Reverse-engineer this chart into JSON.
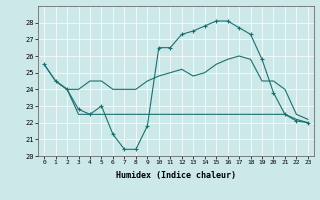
{
  "xlabel": "Humidex (Indice chaleur)",
  "bg_color": "#cce8e8",
  "line_color": "#1a7070",
  "grid_color": "#ffffff",
  "ylim": [
    20,
    29
  ],
  "xlim": [
    -0.5,
    23.5
  ],
  "yticks": [
    20,
    21,
    22,
    23,
    24,
    25,
    26,
    27,
    28
  ],
  "xticks": [
    0,
    1,
    2,
    3,
    4,
    5,
    6,
    7,
    8,
    9,
    10,
    11,
    12,
    13,
    14,
    15,
    16,
    17,
    18,
    19,
    20,
    21,
    22,
    23
  ],
  "line1_x": [
    0,
    1,
    2,
    3,
    4,
    5,
    6,
    7,
    8,
    9,
    10,
    11,
    12,
    13,
    14,
    15,
    16,
    17,
    18,
    19,
    20,
    21,
    22,
    23
  ],
  "line1_y": [
    25.5,
    24.5,
    24.0,
    24.0,
    24.5,
    24.5,
    24.0,
    24.0,
    24.0,
    24.5,
    24.8,
    25.0,
    25.2,
    24.8,
    25.0,
    25.5,
    25.8,
    26.0,
    25.8,
    24.5,
    24.5,
    24.0,
    22.5,
    22.2
  ],
  "line2_x": [
    1,
    2,
    3,
    4,
    5,
    6,
    7,
    8,
    9,
    10,
    11,
    12,
    13,
    14,
    15,
    16,
    17,
    18,
    19,
    20,
    21,
    22,
    23
  ],
  "line2_y": [
    24.5,
    24.0,
    22.5,
    22.5,
    22.5,
    22.5,
    22.5,
    22.5,
    22.5,
    22.5,
    22.5,
    22.5,
    22.5,
    22.5,
    22.5,
    22.5,
    22.5,
    22.5,
    22.5,
    22.5,
    22.5,
    22.2,
    22.0
  ],
  "line3_x": [
    0,
    1,
    2,
    3,
    4,
    5,
    6,
    7,
    8,
    9,
    10,
    11,
    12,
    13,
    14,
    15,
    16,
    17,
    18,
    19,
    20,
    21,
    22,
    23
  ],
  "line3_y": [
    25.5,
    24.5,
    24.0,
    22.8,
    22.5,
    23.0,
    21.3,
    20.4,
    20.4,
    21.8,
    26.5,
    26.5,
    27.3,
    27.5,
    27.8,
    28.1,
    28.1,
    27.7,
    27.3,
    25.8,
    23.8,
    22.5,
    22.1,
    22.0
  ]
}
